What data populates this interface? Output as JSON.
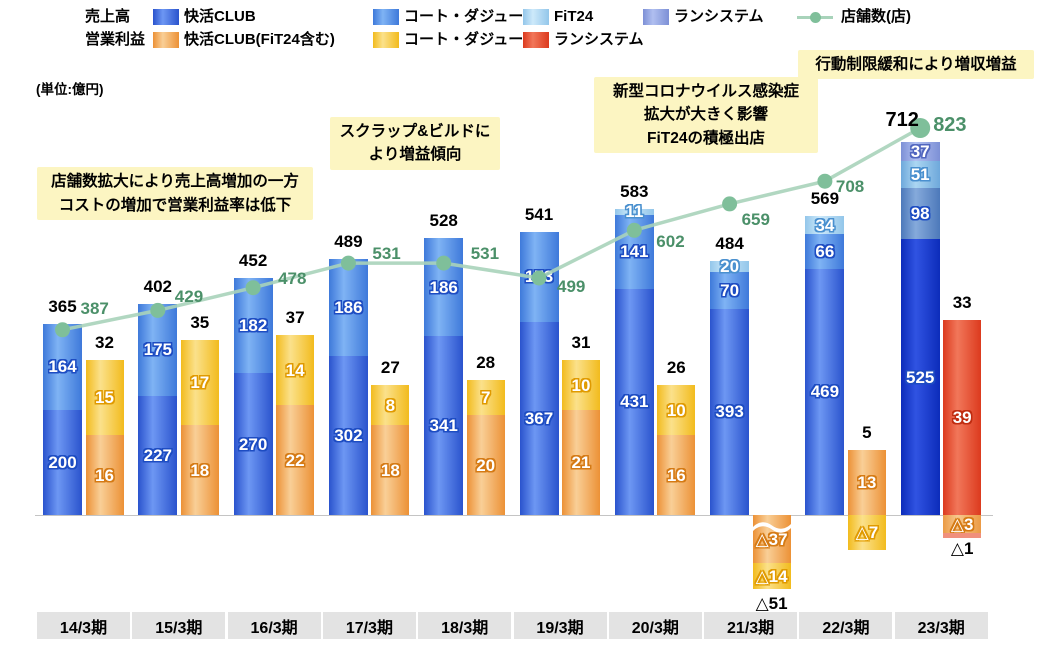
{
  "unit_label": "(単位:億円)",
  "legend": {
    "revenue_row_label": "売上高",
    "profit_row_label": "営業利益",
    "revenue_items": [
      {
        "label": "快活CLUB",
        "c": "kai"
      },
      {
        "label": "コート・ダジュール",
        "c": "cote"
      },
      {
        "label": "FiT24",
        "c": "fit"
      },
      {
        "label": "ランシステム",
        "c": "run"
      }
    ],
    "stores_item_label": "店舗数(店)",
    "profit_items": [
      {
        "label": "快活CLUB(FiT24含む)",
        "c": "oran"
      },
      {
        "label": "コート・ダジュール",
        "c": "yel"
      },
      {
        "label": "ランシステム",
        "c": "red"
      }
    ],
    "line_color": "#a8d3ba",
    "dot_color": "#7fbf9a"
  },
  "annotations": {
    "stores_expand": {
      "lines": [
        "店舗数拡大により売上高増加の一方",
        "コストの増加で営業利益率は低下"
      ]
    },
    "scrap_build": {
      "lines": [
        "スクラップ&ビルドに",
        "より増益傾向"
      ]
    },
    "covid": {
      "lines": [
        "新型コロナウイルス感染症",
        "拡大が大きく影響",
        "FiT24の積極出店"
      ]
    },
    "restrictions": {
      "lines": [
        "行動制限緩和により増収増益"
      ]
    }
  },
  "chart_data": {
    "type": "bar",
    "subtype": "stacked bars (revenue and operating profit) with store-count line on secondary axis",
    "unit": "億円",
    "legend_position": "top",
    "categories": [
      "14/3期",
      "15/3期",
      "16/3期",
      "17/3期",
      "18/3期",
      "19/3期",
      "20/3期",
      "21/3期",
      "22/3期",
      "23/3期"
    ],
    "revenue_bars": [
      {
        "total": "365",
        "segments": [
          {
            "c": "kai",
            "v": 200,
            "label": "200"
          },
          {
            "c": "cote",
            "v": 164,
            "label": "164"
          }
        ]
      },
      {
        "total": "402",
        "segments": [
          {
            "c": "kai",
            "v": 227,
            "label": "227"
          },
          {
            "c": "cote",
            "v": 175,
            "label": "175"
          }
        ]
      },
      {
        "total": "452",
        "segments": [
          {
            "c": "kai",
            "v": 270,
            "label": "270"
          },
          {
            "c": "cote",
            "v": 182,
            "label": "182"
          }
        ]
      },
      {
        "total": "489",
        "segments": [
          {
            "c": "kai",
            "v": 302,
            "label": "302"
          },
          {
            "c": "cote",
            "v": 186,
            "label": "186"
          }
        ]
      },
      {
        "total": "528",
        "segments": [
          {
            "c": "kai",
            "v": 341,
            "label": "341"
          },
          {
            "c": "cote",
            "v": 186,
            "label": "186"
          }
        ]
      },
      {
        "total": "541",
        "segments": [
          {
            "c": "kai",
            "v": 367,
            "label": "367"
          },
          {
            "c": "cote",
            "v": 173,
            "label": "173"
          }
        ]
      },
      {
        "total": "583",
        "segments": [
          {
            "c": "kai",
            "v": 431,
            "label": "431"
          },
          {
            "c": "cote",
            "v": 141,
            "label": "141"
          },
          {
            "c": "fit",
            "v": 11,
            "label": "11"
          }
        ]
      },
      {
        "total": "484",
        "segments": [
          {
            "c": "kai",
            "v": 393,
            "label": "393"
          },
          {
            "c": "cote",
            "v": 70,
            "label": "70"
          },
          {
            "c": "fit",
            "v": 20,
            "label": "20"
          }
        ]
      },
      {
        "total": "569",
        "segments": [
          {
            "c": "kai",
            "v": 469,
            "label": "469"
          },
          {
            "c": "cote",
            "v": 66,
            "label": "66"
          },
          {
            "c": "fit",
            "v": 34,
            "label": "34"
          }
        ]
      },
      {
        "total": "712",
        "total_big": true,
        "total_dx": -18,
        "segments": [
          {
            "c": "kai2",
            "v": 525,
            "label": "525"
          },
          {
            "c": "cote2",
            "v": 98,
            "label": "98"
          },
          {
            "c": "fit2",
            "v": 51,
            "label": "51"
          },
          {
            "c": "run",
            "v": 37,
            "label": "37"
          }
        ]
      }
    ],
    "profit_bars": [
      {
        "total": "32",
        "segments": [
          {
            "c": "oran",
            "v": 16,
            "label": "16"
          },
          {
            "c": "yel",
            "v": 15,
            "label": "15"
          }
        ]
      },
      {
        "total": "35",
        "segments": [
          {
            "c": "oran",
            "v": 18,
            "label": "18"
          },
          {
            "c": "yel",
            "v": 17,
            "label": "17"
          }
        ]
      },
      {
        "total": "37",
        "segments": [
          {
            "c": "oran",
            "v": 22,
            "label": "22"
          },
          {
            "c": "yel",
            "v": 14,
            "label": "14"
          }
        ]
      },
      {
        "total": "27",
        "segments": [
          {
            "c": "oran",
            "v": 18,
            "label": "18"
          },
          {
            "c": "yel",
            "v": 8,
            "label": "8"
          }
        ]
      },
      {
        "total": "28",
        "segments": [
          {
            "c": "oran",
            "v": 20,
            "label": "20"
          },
          {
            "c": "yel",
            "v": 7,
            "label": "7"
          }
        ]
      },
      {
        "total": "31",
        "segments": [
          {
            "c": "oran",
            "v": 21,
            "label": "21"
          },
          {
            "c": "yel",
            "v": 10,
            "label": "10"
          }
        ]
      },
      {
        "total": "26",
        "segments": [
          {
            "c": "oran",
            "v": 16,
            "label": "16"
          },
          {
            "c": "yel",
            "v": 10,
            "label": "10"
          }
        ]
      },
      {
        "total": "△51",
        "total_below": true,
        "segments": [
          {
            "c": "oran",
            "v": -37,
            "label": "△37",
            "h": 48,
            "wave": true
          },
          {
            "c": "yel",
            "v": -14,
            "label": "△14",
            "h": 26
          }
        ]
      },
      {
        "total": "5",
        "segments": [
          {
            "c": "oran",
            "v": 13,
            "label": "13"
          },
          {
            "c": "yel",
            "v": -7,
            "label": "△7"
          }
        ]
      },
      {
        "total": "33",
        "extra_below": "△1",
        "segments": [
          {
            "c": "red",
            "v": 39,
            "label": "39"
          },
          {
            "c": "oneg",
            "v": -3,
            "label": "△3",
            "h": 18
          },
          {
            "c": "rlight",
            "v": 0,
            "label": "",
            "h": 5
          }
        ]
      }
    ],
    "stores": {
      "name": "店舗数(店)",
      "values": [
        387,
        429,
        478,
        531,
        531,
        499,
        602,
        659,
        708,
        823
      ],
      "labels": [
        "387",
        "429",
        "478",
        "531",
        "531",
        "499",
        "602",
        "659",
        "708",
        "823"
      ]
    },
    "colors": {
      "kaikatsu_revenue": "#2a53cd",
      "cote_revenue": "#3e79da",
      "fit24_revenue": "#93c6ea",
      "runsystem_revenue": "#7d90d6",
      "kaikatsu_profit": "#ec9136",
      "cote_profit": "#f2bb1d",
      "runsystem_profit": "#dc3a1e",
      "store_line": "#a8d3ba",
      "store_text": "#4b9069"
    }
  }
}
